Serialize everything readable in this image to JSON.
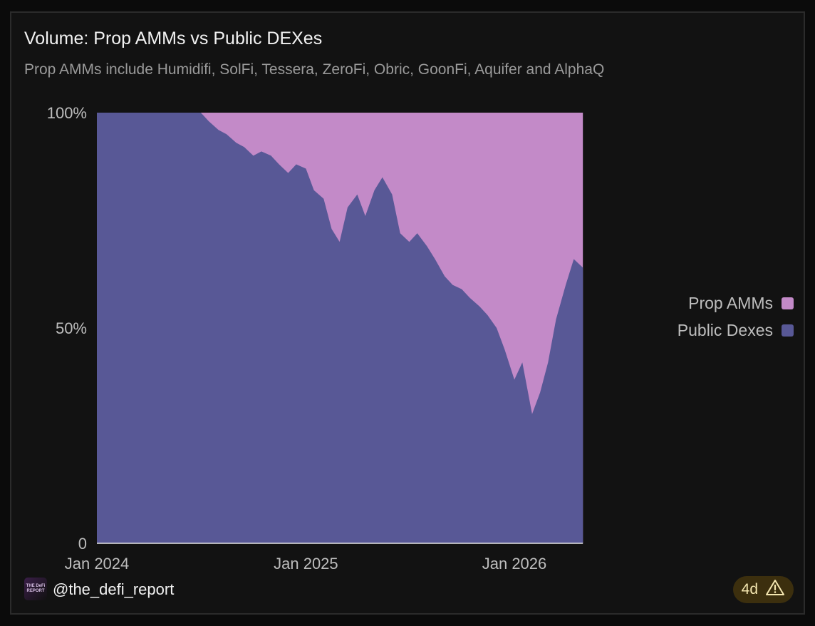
{
  "title": "Volume: Prop AMMs vs Public DEXes",
  "subtitle": "Prop AMMs include Humidifi, SolFi, Tessera, ZeroFi, Obric, GoonFi, Aquifer and AlphaQ",
  "footer": {
    "logo_text": "THE DeFi REPORT",
    "handle": "@the_defi_report",
    "badge": "4d",
    "badge_icon": "warning-icon"
  },
  "colors": {
    "prop_amms": "#c38ac8",
    "public_dexes": "#585896",
    "background": "#121212"
  },
  "chart_data": {
    "type": "area",
    "stacked": true,
    "normalized": true,
    "title": "Volume: Prop AMMs vs Public DEXes",
    "subtitle": "Prop AMMs include Humidifi, SolFi, Tessera, ZeroFi, Obric, GoonFi, Aquifer and AlphaQ",
    "xlabel": "",
    "ylabel": "",
    "y_ticks": [
      "0",
      "50%",
      "100%"
    ],
    "x_ticks": [
      "Jan 2024",
      "Jan 2025",
      "Jan 2026"
    ],
    "ylim": [
      0,
      100
    ],
    "legend": [
      "Prop AMMs",
      "Public Dexes"
    ],
    "legend_position": "right",
    "x": [
      "2024-01-01",
      "2024-02-01",
      "2024-03-01",
      "2024-04-01",
      "2024-05-01",
      "2024-06-01",
      "2024-07-01",
      "2024-07-15",
      "2024-08-01",
      "2024-08-15",
      "2024-09-01",
      "2024-09-15",
      "2024-10-01",
      "2024-10-15",
      "2024-11-01",
      "2024-11-15",
      "2024-12-01",
      "2024-12-15",
      "2025-01-01",
      "2025-01-15",
      "2025-02-01",
      "2025-02-15",
      "2025-03-01",
      "2025-03-15",
      "2025-04-01",
      "2025-04-15",
      "2025-05-01",
      "2025-05-15",
      "2025-06-01",
      "2025-06-15",
      "2025-07-01",
      "2025-07-15",
      "2025-08-01",
      "2025-08-15",
      "2025-09-01",
      "2025-09-15",
      "2025-10-01",
      "2025-10-15",
      "2025-11-01",
      "2025-11-15",
      "2025-12-01",
      "2025-12-15",
      "2026-01-01",
      "2026-01-15",
      "2026-02-01",
      "2026-02-15",
      "2026-03-01",
      "2026-03-15",
      "2026-04-01",
      "2026-04-15",
      "2026-05-01"
    ],
    "series": [
      {
        "name": "Public Dexes",
        "values": [
          100,
          100,
          100,
          100,
          100,
          100,
          100,
          98,
          96,
          95,
          93,
          92,
          90,
          91,
          90,
          88,
          86,
          88,
          87,
          82,
          80,
          73,
          70,
          78,
          81,
          76,
          82,
          85,
          81,
          72,
          70,
          72,
          69,
          66,
          62,
          60,
          59,
          57,
          55,
          53,
          50,
          45,
          38,
          42,
          30,
          35,
          42,
          52,
          60,
          66,
          64
        ]
      },
      {
        "name": "Prop AMMs",
        "values": [
          0,
          0,
          0,
          0,
          0,
          0,
          0,
          2,
          4,
          5,
          7,
          8,
          10,
          9,
          10,
          12,
          14,
          12,
          13,
          18,
          20,
          27,
          30,
          22,
          19,
          24,
          18,
          15,
          19,
          28,
          30,
          28,
          31,
          34,
          38,
          40,
          41,
          43,
          45,
          47,
          50,
          55,
          62,
          58,
          70,
          65,
          58,
          48,
          40,
          34,
          36
        ]
      }
    ]
  }
}
